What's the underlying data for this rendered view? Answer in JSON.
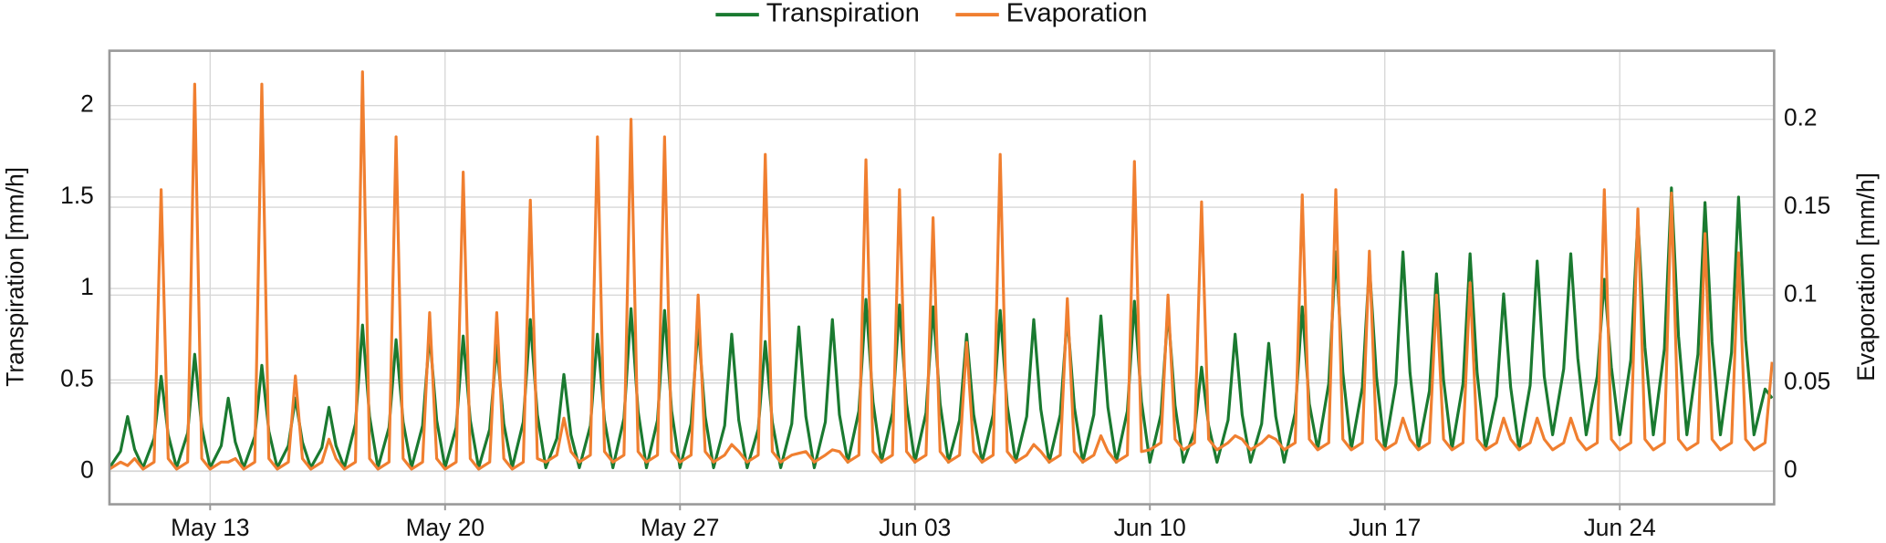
{
  "chart_data": {
    "type": "line",
    "legend": "upper center",
    "grid": true,
    "ylabel": "Transpiration [mm/h]",
    "y2label": "Evaporation [mm/h]",
    "xlim": [
      10,
      59.6
    ],
    "xticks": [
      {
        "value": 13,
        "label": "May 13"
      },
      {
        "value": 20,
        "label": "May 20"
      },
      {
        "value": 27,
        "label": "May 27"
      },
      {
        "value": 34,
        "label": "Jun 03"
      },
      {
        "value": 41,
        "label": "Jun 10"
      },
      {
        "value": 48,
        "label": "Jun 17"
      },
      {
        "value": 55,
        "label": "Jun 24"
      }
    ],
    "ylim": [
      -0.18,
      2.3
    ],
    "yticks": [
      0,
      0.5,
      1,
      1.5,
      2
    ],
    "y2lim": [
      -0.019,
      0.239
    ],
    "y2ticks": [
      0,
      0.05,
      0.1,
      0.15,
      0.2
    ],
    "x": [
      10,
      10.33,
      10.54,
      10.75,
      11,
      11.33,
      11.54,
      11.75,
      12,
      12.33,
      12.54,
      12.75,
      13,
      13.33,
      13.54,
      13.75,
      14,
      14.33,
      14.54,
      14.75,
      15,
      15.33,
      15.54,
      15.75,
      16,
      16.33,
      16.54,
      16.75,
      17,
      17.33,
      17.54,
      17.75,
      18,
      18.33,
      18.54,
      18.75,
      19,
      19.33,
      19.54,
      19.75,
      20,
      20.33,
      20.54,
      20.75,
      21,
      21.33,
      21.54,
      21.75,
      22,
      22.33,
      22.54,
      22.75,
      23,
      23.33,
      23.54,
      23.75,
      24,
      24.33,
      24.54,
      24.75,
      25,
      25.33,
      25.54,
      25.75,
      26,
      26.33,
      26.54,
      26.75,
      27,
      27.33,
      27.54,
      27.75,
      28,
      28.33,
      28.54,
      28.75,
      29,
      29.33,
      29.54,
      29.75,
      30,
      30.33,
      30.54,
      30.75,
      31,
      31.33,
      31.54,
      31.75,
      32,
      32.33,
      32.54,
      32.75,
      33,
      33.33,
      33.54,
      33.75,
      34,
      34.33,
      34.54,
      34.75,
      35,
      35.33,
      35.54,
      35.75,
      36,
      36.33,
      36.54,
      36.75,
      37,
      37.33,
      37.54,
      37.75,
      38,
      38.33,
      38.54,
      38.75,
      39,
      39.33,
      39.54,
      39.75,
      40,
      40.33,
      40.54,
      40.75,
      41,
      41.33,
      41.54,
      41.75,
      42,
      42.33,
      42.54,
      42.75,
      43,
      43.33,
      43.54,
      43.75,
      44,
      44.33,
      44.54,
      44.75,
      45,
      45.33,
      45.54,
      45.75,
      46,
      46.33,
      46.54,
      46.75,
      47,
      47.33,
      47.54,
      47.75,
      48,
      48.33,
      48.54,
      48.75,
      49,
      49.33,
      49.54,
      49.75,
      50,
      50.33,
      50.54,
      50.75,
      51,
      51.33,
      51.54,
      51.75,
      52,
      52.33,
      52.54,
      52.75,
      53,
      53.33,
      53.54,
      53.75,
      54,
      54.33,
      54.54,
      54.75,
      55,
      55.33,
      55.54,
      55.75,
      56,
      56.33,
      56.54,
      56.75,
      57,
      57.33,
      57.54,
      57.75,
      58,
      58.33,
      58.54,
      58.75,
      59,
      59.33,
      59.54
    ],
    "series": [
      {
        "name": "Transpiration",
        "color": "#1a7a30",
        "axis": "y",
        "values": [
          0.02,
          0.11,
          0.3,
          0.12,
          0.02,
          0.18,
          0.52,
          0.2,
          0.02,
          0.21,
          0.64,
          0.24,
          0.02,
          0.14,
          0.4,
          0.16,
          0.02,
          0.19,
          0.58,
          0.22,
          0.02,
          0.14,
          0.4,
          0.16,
          0.02,
          0.13,
          0.35,
          0.14,
          0.02,
          0.26,
          0.8,
          0.3,
          0.02,
          0.24,
          0.72,
          0.27,
          0.02,
          0.25,
          0.75,
          0.28,
          0.02,
          0.24,
          0.74,
          0.28,
          0.02,
          0.23,
          0.69,
          0.26,
          0.02,
          0.27,
          0.83,
          0.31,
          0.02,
          0.18,
          0.53,
          0.2,
          0.02,
          0.25,
          0.75,
          0.28,
          0.02,
          0.29,
          0.89,
          0.33,
          0.02,
          0.28,
          0.88,
          0.33,
          0.02,
          0.26,
          0.8,
          0.3,
          0.02,
          0.25,
          0.75,
          0.28,
          0.02,
          0.23,
          0.71,
          0.27,
          0.02,
          0.26,
          0.79,
          0.3,
          0.02,
          0.27,
          0.83,
          0.31,
          0.05,
          0.33,
          0.94,
          0.38,
          0.05,
          0.32,
          0.91,
          0.37,
          0.05,
          0.32,
          0.9,
          0.37,
          0.05,
          0.28,
          0.75,
          0.31,
          0.05,
          0.31,
          0.88,
          0.36,
          0.05,
          0.3,
          0.83,
          0.34,
          0.05,
          0.31,
          0.85,
          0.35,
          0.05,
          0.31,
          0.85,
          0.35,
          0.05,
          0.33,
          0.93,
          0.38,
          0.05,
          0.31,
          0.88,
          0.36,
          0.05,
          0.22,
          0.57,
          0.25,
          0.05,
          0.28,
          0.75,
          0.31,
          0.05,
          0.26,
          0.7,
          0.3,
          0.05,
          0.32,
          0.9,
          0.37,
          0.12,
          0.48,
          1.2,
          0.54,
          0.12,
          0.46,
          1.13,
          0.52,
          0.12,
          0.48,
          1.2,
          0.54,
          0.12,
          0.44,
          1.08,
          0.5,
          0.12,
          0.48,
          1.19,
          0.54,
          0.12,
          0.41,
          0.97,
          0.46,
          0.12,
          0.47,
          1.15,
          0.52,
          0.2,
          0.56,
          1.19,
          0.62,
          0.2,
          0.52,
          1.05,
          0.57,
          0.2,
          0.61,
          1.38,
          0.68,
          0.2,
          0.67,
          1.55,
          0.74,
          0.2,
          0.64,
          1.47,
          0.71,
          0.2,
          0.65,
          1.5,
          0.72,
          0.2,
          0.45,
          0.4
        ]
      },
      {
        "name": "Evaporation",
        "color": "#f07f30",
        "axis": "y2",
        "values": [
          0.001,
          0.005,
          0.003,
          0.007,
          0.001,
          0.005,
          0.16,
          0.007,
          0.001,
          0.005,
          0.22,
          0.007,
          0.001,
          0.005,
          0.005,
          0.007,
          0.001,
          0.005,
          0.22,
          0.007,
          0.001,
          0.005,
          0.054,
          0.007,
          0.001,
          0.005,
          0.018,
          0.007,
          0.001,
          0.005,
          0.227,
          0.007,
          0.001,
          0.005,
          0.19,
          0.007,
          0.001,
          0.005,
          0.09,
          0.007,
          0.001,
          0.005,
          0.17,
          0.007,
          0.001,
          0.005,
          0.09,
          0.007,
          0.001,
          0.005,
          0.154,
          0.007,
          0.005,
          0.009,
          0.03,
          0.011,
          0.005,
          0.009,
          0.19,
          0.011,
          0.005,
          0.009,
          0.2,
          0.011,
          0.005,
          0.009,
          0.19,
          0.011,
          0.005,
          0.009,
          0.1,
          0.011,
          0.005,
          0.009,
          0.015,
          0.011,
          0.005,
          0.009,
          0.18,
          0.011,
          0.005,
          0.009,
          0.01,
          0.011,
          0.005,
          0.009,
          0.012,
          0.011,
          0.005,
          0.009,
          0.177,
          0.011,
          0.005,
          0.009,
          0.16,
          0.011,
          0.005,
          0.009,
          0.144,
          0.011,
          0.005,
          0.009,
          0.073,
          0.011,
          0.005,
          0.009,
          0.18,
          0.011,
          0.005,
          0.009,
          0.015,
          0.011,
          0.005,
          0.009,
          0.098,
          0.011,
          0.005,
          0.009,
          0.02,
          0.011,
          0.005,
          0.009,
          0.176,
          0.011,
          0.012,
          0.016,
          0.1,
          0.018,
          0.012,
          0.016,
          0.153,
          0.018,
          0.012,
          0.016,
          0.02,
          0.018,
          0.012,
          0.016,
          0.02,
          0.018,
          0.012,
          0.016,
          0.157,
          0.018,
          0.012,
          0.016,
          0.16,
          0.018,
          0.012,
          0.016,
          0.125,
          0.018,
          0.012,
          0.016,
          0.03,
          0.018,
          0.012,
          0.016,
          0.1,
          0.018,
          0.012,
          0.016,
          0.107,
          0.018,
          0.012,
          0.016,
          0.03,
          0.018,
          0.012,
          0.016,
          0.03,
          0.018,
          0.012,
          0.016,
          0.03,
          0.018,
          0.012,
          0.016,
          0.16,
          0.018,
          0.012,
          0.016,
          0.149,
          0.018,
          0.012,
          0.016,
          0.158,
          0.018,
          0.012,
          0.016,
          0.135,
          0.018,
          0.012,
          0.016,
          0.124,
          0.018,
          0.012,
          0.016,
          0.062
        ]
      }
    ]
  }
}
